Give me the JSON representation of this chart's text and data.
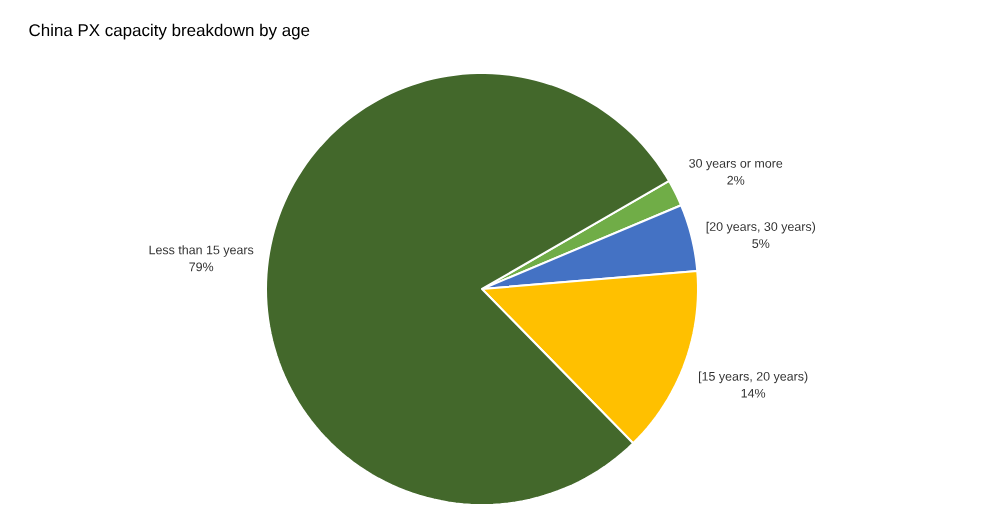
{
  "chart_data": {
    "type": "pie",
    "title": "China PX capacity breakdown by age",
    "categories": [
      "30 years or more",
      "[20 years, 30 years)",
      "[15 years, 20 years)",
      "Less than 15 years"
    ],
    "values": [
      2,
      5,
      14,
      79
    ],
    "value_labels": [
      "2%",
      "5%",
      "14%",
      "79%"
    ],
    "colors": [
      "#70ad47",
      "#4472c4",
      "#ffc000",
      "#43682b"
    ]
  }
}
